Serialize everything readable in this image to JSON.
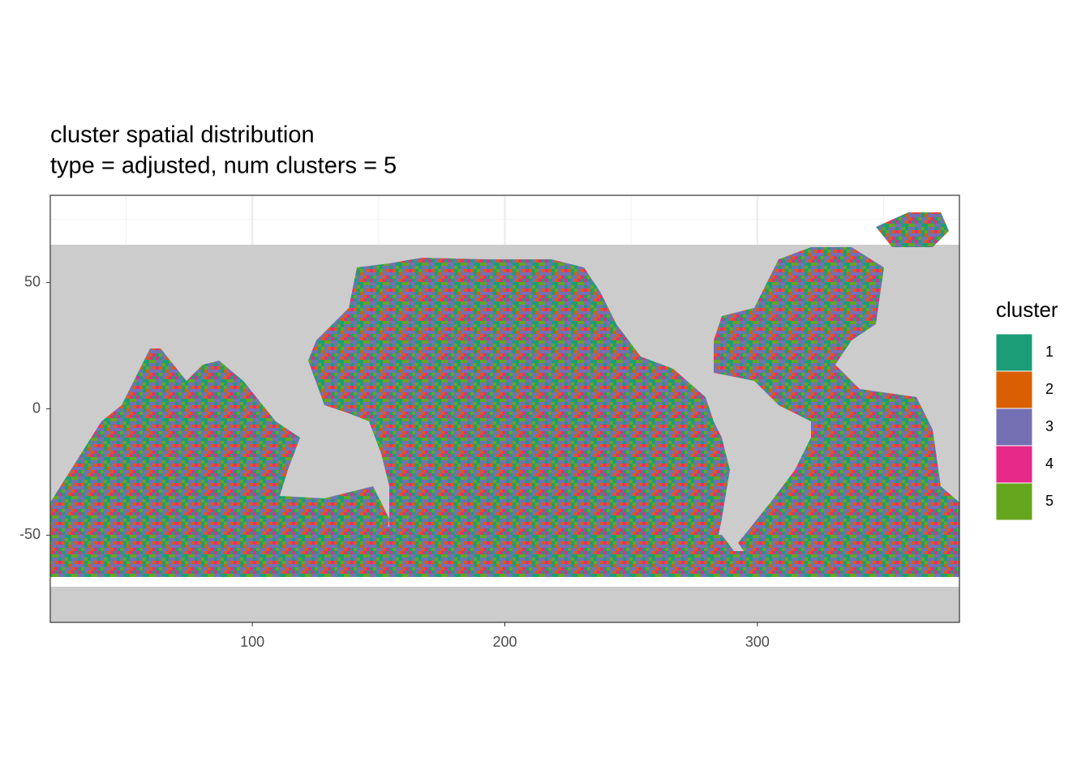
{
  "chart_data": {
    "type": "raster",
    "title": "cluster spatial distribution",
    "subtitle": "type = adjusted, num clusters = 5",
    "xlim": [
      20,
      380
    ],
    "ylim": [
      -84.5,
      84.5
    ],
    "xticks": [
      100,
      200,
      300
    ],
    "yticks": [
      -50,
      0,
      50
    ],
    "grid": true,
    "land_color": "#CCCCCC",
    "legend": {
      "title": "cluster",
      "position": "right",
      "items": [
        {
          "label": "1",
          "color": "#1B9E77"
        },
        {
          "label": "2",
          "color": "#D95F02"
        },
        {
          "label": "3",
          "color": "#7570B3"
        },
        {
          "label": "4",
          "color": "#E7298A"
        },
        {
          "label": "5",
          "color": "#66A61E"
        }
      ]
    }
  }
}
